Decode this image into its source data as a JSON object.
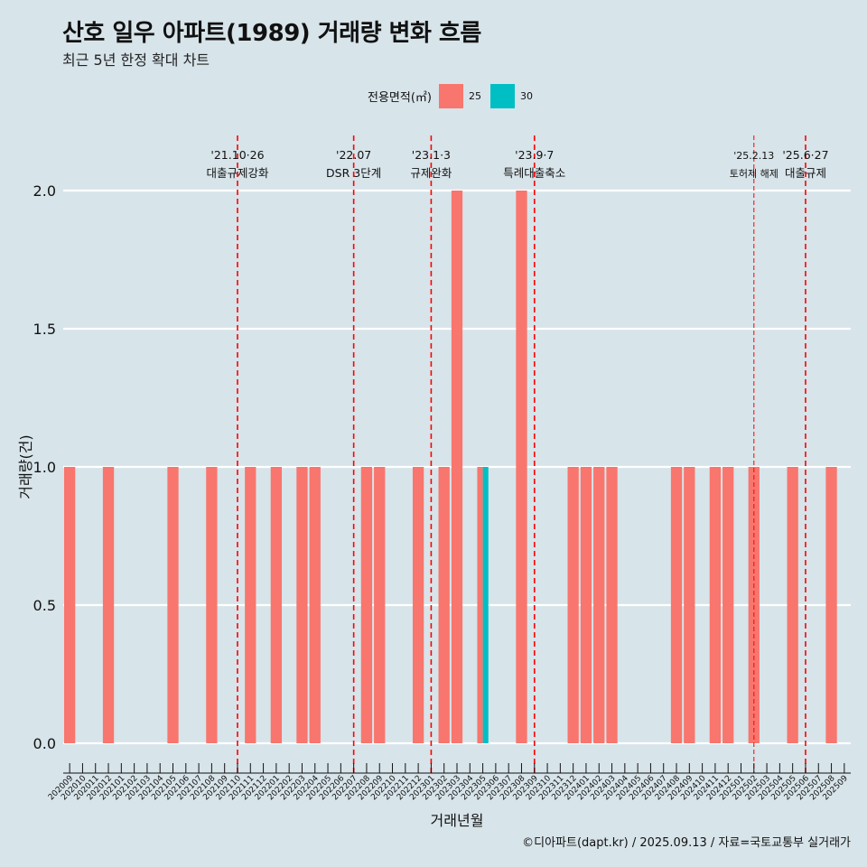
{
  "title": "산호 일우 아파트(1989) 거래량 변화 흐름",
  "subtitle": "최근 5년 한정 확대 차트",
  "caption": "©디아파트(dapt.kr) / 2025.09.13 / 자료=국토교통부 실거래가",
  "legend": {
    "title": "전용면적(㎡)",
    "items": [
      {
        "label": "25",
        "color": "#F8766D"
      },
      {
        "label": "30",
        "color": "#00BFC4"
      }
    ]
  },
  "chart_data": {
    "type": "bar",
    "xlabel": "거래년월",
    "ylabel": "거래량(건)",
    "ylim": [
      0,
      2
    ],
    "yticks": [
      "0.0",
      "0.5",
      "1.0",
      "1.5",
      "2.0"
    ],
    "grid": true,
    "legend_position": "top",
    "categories": [
      "202009",
      "202010",
      "202011",
      "202012",
      "202101",
      "202102",
      "202103",
      "202104",
      "202105",
      "202106",
      "202107",
      "202108",
      "202109",
      "202110",
      "202111",
      "202112",
      "202201",
      "202202",
      "202203",
      "202204",
      "202205",
      "202206",
      "202207",
      "202208",
      "202209",
      "202210",
      "202211",
      "202212",
      "202301",
      "202302",
      "202303",
      "202304",
      "202305",
      "202306",
      "202307",
      "202308",
      "202309",
      "202310",
      "202311",
      "202312",
      "202401",
      "202402",
      "202403",
      "202404",
      "202405",
      "202406",
      "202407",
      "202408",
      "202409",
      "202410",
      "202411",
      "202412",
      "202501",
      "202502",
      "202503",
      "202504",
      "202505",
      "202506",
      "202507",
      "202508",
      "202509"
    ],
    "series": [
      {
        "name": "25",
        "values": [
          1,
          0,
          0,
          1,
          0,
          0,
          0,
          0,
          1,
          0,
          0,
          1,
          0,
          0,
          1,
          0,
          1,
          0,
          1,
          1,
          0,
          0,
          0,
          1,
          1,
          0,
          0,
          1,
          0,
          1,
          2,
          0,
          1,
          0,
          0,
          2,
          0,
          0,
          0,
          1,
          1,
          1,
          1,
          0,
          0,
          0,
          0,
          1,
          1,
          0,
          1,
          1,
          0,
          1,
          0,
          0,
          1,
          0,
          0,
          1,
          0
        ]
      },
      {
        "name": "30",
        "values": [
          0,
          0,
          0,
          0,
          0,
          0,
          0,
          0,
          0,
          0,
          0,
          0,
          0,
          0,
          0,
          0,
          0,
          0,
          0,
          0,
          0,
          0,
          0,
          0,
          0,
          0,
          0,
          0,
          0,
          0,
          0,
          0,
          1,
          0,
          0,
          0,
          0,
          0,
          0,
          0,
          0,
          0,
          0,
          0,
          0,
          0,
          0,
          0,
          0,
          0,
          0,
          0,
          0,
          0,
          0,
          0,
          0,
          0,
          0,
          0,
          0
        ]
      }
    ],
    "annotations": [
      {
        "date": "'21.10·26",
        "label": "대출규제강화",
        "at": "202110"
      },
      {
        "date": "'22.07",
        "label": "DSR 3단계",
        "at": "202207"
      },
      {
        "date": "'23.1·3",
        "label": "규제완화",
        "at": "202301"
      },
      {
        "date": "'23.9·7",
        "label": "특례대출축소",
        "at": "202309"
      },
      {
        "date": "'25.2.13",
        "label": "토허제 해제",
        "at": "202502"
      },
      {
        "date": "'25.6·27",
        "label": "대출규제",
        "at": "202506"
      }
    ]
  }
}
